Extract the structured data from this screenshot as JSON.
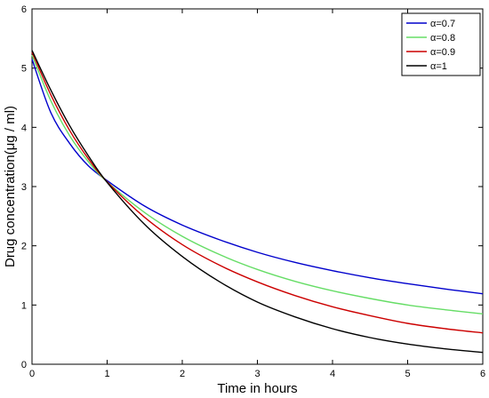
{
  "chart_data": {
    "type": "line",
    "xlabel": "Time in hours",
    "ylabel": "Drug concentration(μg / ml)",
    "xlim": [
      0,
      6
    ],
    "ylim": [
      0,
      6
    ],
    "xticks": [
      "0",
      "1",
      "2",
      "3",
      "4",
      "5",
      "6"
    ],
    "yticks": [
      "0",
      "1",
      "2",
      "3",
      "4",
      "5",
      "6"
    ],
    "grid": false,
    "legend_position": "top-right",
    "x": [
      0,
      0.25,
      0.5,
      0.75,
      1,
      1.5,
      2,
      2.5,
      3,
      3.5,
      4,
      4.5,
      5,
      5.5,
      6
    ],
    "series": [
      {
        "name": "α=0.7",
        "color": "#0000cc",
        "values": [
          5.15,
          4.25,
          3.73,
          3.35,
          3.1,
          2.67,
          2.35,
          2.1,
          1.89,
          1.72,
          1.58,
          1.46,
          1.36,
          1.27,
          1.19
        ]
      },
      {
        "name": "α=0.8",
        "color": "#66dd66",
        "values": [
          5.22,
          4.45,
          3.86,
          3.42,
          3.08,
          2.56,
          2.16,
          1.85,
          1.6,
          1.4,
          1.24,
          1.11,
          1.0,
          0.92,
          0.85
        ]
      },
      {
        "name": "α=0.9",
        "color": "#cc0000",
        "values": [
          5.27,
          4.55,
          3.95,
          3.47,
          3.08,
          2.48,
          2.02,
          1.67,
          1.39,
          1.16,
          0.97,
          0.82,
          0.69,
          0.6,
          0.53
        ]
      },
      {
        "name": "α=1",
        "color": "#000000",
        "values": [
          5.3,
          4.63,
          4.03,
          3.52,
          3.07,
          2.36,
          1.82,
          1.39,
          1.05,
          0.8,
          0.6,
          0.45,
          0.34,
          0.26,
          0.2
        ]
      }
    ]
  }
}
